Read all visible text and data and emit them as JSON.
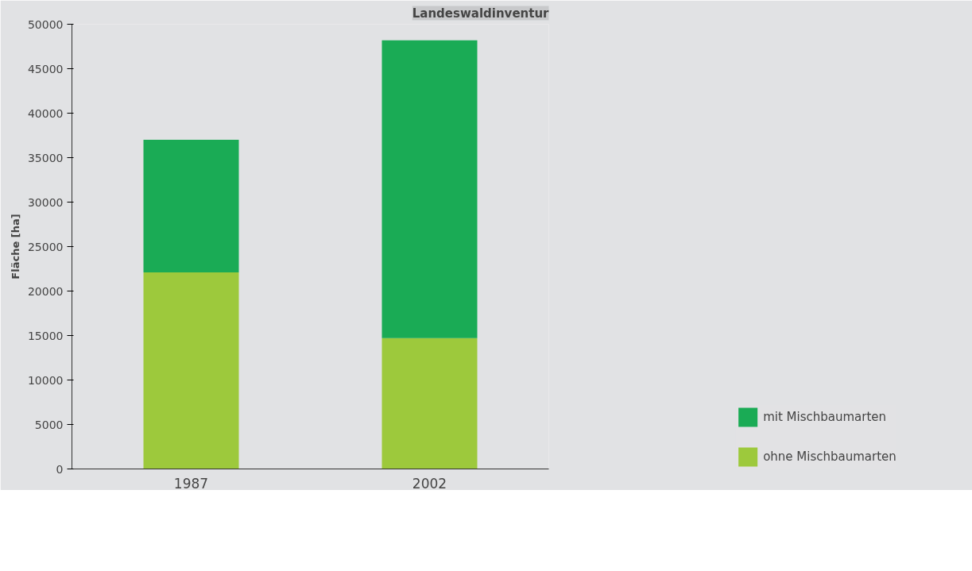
{
  "chart_data": {
    "type": "bar",
    "title": "Landeswaldinventur",
    "ylabel": "Fläche [ha]",
    "categories": [
      "1987",
      "2002"
    ],
    "stacked": true,
    "series": [
      {
        "name": "ohne Mischbaumarten",
        "color": "#9dc93c",
        "values": [
          22100,
          14700
        ]
      },
      {
        "name": "mit Mischbaumarten",
        "color": "#1aab55",
        "values": [
          14900,
          33500
        ]
      }
    ],
    "ylim": [
      0,
      50000
    ],
    "yticks": [
      0,
      5000,
      10000,
      15000,
      20000,
      25000,
      30000,
      35000,
      40000,
      45000,
      50000
    ],
    "legend": "bottom right"
  }
}
